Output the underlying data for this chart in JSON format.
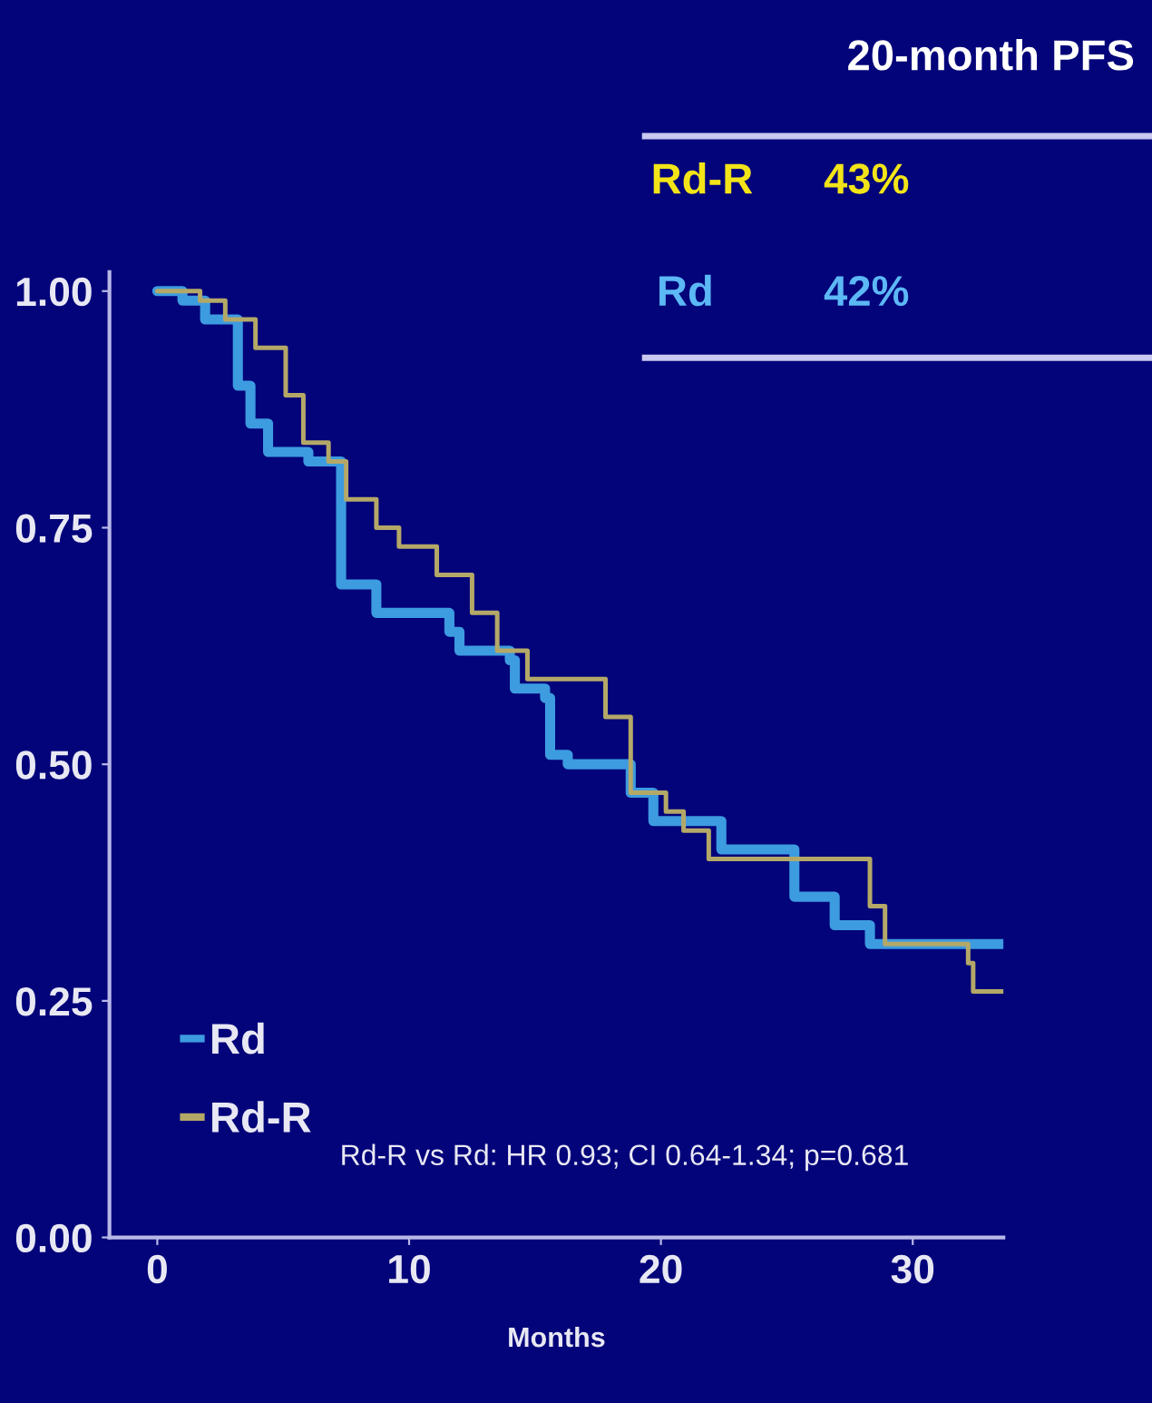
{
  "chart_data": {
    "type": "step",
    "xlabel": "Months",
    "series": [
      {
        "name": "Rd",
        "color": "#3d9be0",
        "x": [
          0,
          1.0,
          1.9,
          3.2,
          3.7,
          4.4,
          6.0,
          7.3,
          8.7,
          11.6,
          12.0,
          14.0,
          14.2,
          15.4,
          15.6,
          16.3,
          18.8,
          19.7,
          22.4,
          25.3,
          26.9,
          28.3,
          33.6
        ],
        "values": [
          1.0,
          0.99,
          0.97,
          0.9,
          0.86,
          0.83,
          0.82,
          0.69,
          0.66,
          0.64,
          0.62,
          0.61,
          0.58,
          0.57,
          0.51,
          0.5,
          0.47,
          0.44,
          0.41,
          0.36,
          0.33,
          0.31,
          0.31
        ]
      },
      {
        "name": "Rd-R",
        "color": "#b4a868",
        "x": [
          0,
          1.7,
          2.7,
          3.9,
          5.1,
          5.8,
          6.8,
          7.5,
          8.7,
          9.6,
          11.1,
          12.5,
          13.5,
          14.7,
          17.8,
          18.8,
          20.2,
          20.9,
          21.9,
          28.3,
          28.9,
          32.2,
          32.4,
          33.6
        ],
        "values": [
          1.0,
          0.99,
          0.97,
          0.94,
          0.89,
          0.84,
          0.82,
          0.78,
          0.75,
          0.73,
          0.7,
          0.66,
          0.62,
          0.59,
          0.55,
          0.47,
          0.45,
          0.43,
          0.4,
          0.35,
          0.31,
          0.29,
          0.26,
          0.26
        ]
      }
    ],
    "xlim": [
      -1.9,
      33.6
    ],
    "ylim": [
      0,
      1.02
    ],
    "xticks": [
      0,
      10,
      20,
      30
    ],
    "yticks": [
      {
        "value": 0,
        "label": "0.00"
      },
      {
        "value": 0.25,
        "label": "0.25"
      },
      {
        "value": 0.5,
        "label": "0.50"
      },
      {
        "value": 0.75,
        "label": "0.75"
      },
      {
        "value": 1.0,
        "label": "1.00"
      }
    ],
    "grid": false,
    "legend": "bottom left",
    "line_style": "solid",
    "marker": "none",
    "annotations": [
      "20-month PFS",
      "Rd-R",
      "43%",
      "Rd",
      "42%",
      "Rd-R vs Rd: HR 0.93; CI 0.64-1.34; p=0.681"
    ]
  }
}
